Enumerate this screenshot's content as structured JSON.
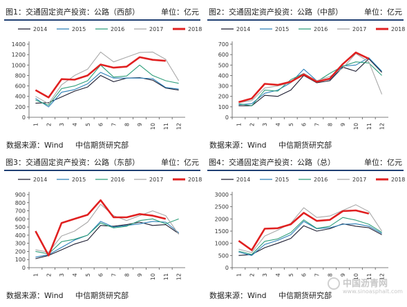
{
  "panels": [
    {
      "title": "图1：交通固定资产投资：公路（西部）",
      "unit": "单位：亿元",
      "source_label": "数据来源：Wind",
      "source_org": "中信期货研究部"
    },
    {
      "title": "图2：交通固定资产投资：公路（中部）",
      "unit": "单位：亿元",
      "source_label": "数据来源：Wind",
      "source_org": "中信期货研究部"
    },
    {
      "title": "图3：交通固定资产投资：公路（东部）",
      "unit": "单位：亿元",
      "source_label": "数据来源：Wind",
      "source_org": "中信期货研究部"
    },
    {
      "title": "图4：交通固定资产投资：公路（总）",
      "unit": "单位：亿元",
      "source_label": "数据来源：Wind",
      "source_org": "中信期货研究部"
    }
  ],
  "watermark": {
    "text": "中国沥青网",
    "url": "www.sinoasphalt.com"
  },
  "series_colors": {
    "2014": "#1a1a2e",
    "2015": "#2a7fb8",
    "2016": "#2e9e7a",
    "2017": "#a8a8a8",
    "2018": "#e02020"
  },
  "chart_data": [
    {
      "type": "line",
      "title": "图1：交通固定资产投资：公路（西部）",
      "xlabel": "",
      "ylabel": "",
      "x": [
        "1",
        "2",
        "3",
        "4",
        "5",
        "6",
        "7",
        "8",
        "9",
        "10",
        "11",
        "12"
      ],
      "ylim": [
        0,
        1400
      ],
      "yticks": [
        0,
        200,
        400,
        600,
        800,
        1000,
        1200,
        1400
      ],
      "grid": false,
      "legend": "top",
      "series": [
        {
          "name": "2014",
          "values": [
            270,
            280,
            390,
            500,
            580,
            800,
            680,
            750,
            760,
            710,
            560,
            520
          ]
        },
        {
          "name": "2015",
          "values": [
            360,
            200,
            480,
            530,
            640,
            860,
            750,
            750,
            750,
            740,
            570,
            540
          ]
        },
        {
          "name": "2016",
          "values": [
            330,
            230,
            550,
            600,
            700,
            1000,
            770,
            790,
            1000,
            800,
            700,
            650
          ]
        },
        {
          "name": "2017",
          "values": [
            400,
            260,
            620,
            800,
            920,
            1250,
            1060,
            1150,
            1240,
            1250,
            1110,
            700
          ]
        },
        {
          "name": "2018",
          "values": [
            520,
            380,
            730,
            720,
            800,
            1010,
            950,
            970,
            1150,
            1100,
            1080,
            null
          ]
        }
      ]
    },
    {
      "type": "line",
      "title": "图2：交通固定资产投资：公路（中部）",
      "xlabel": "",
      "ylabel": "",
      "x": [
        "1",
        "2",
        "3",
        "4",
        "5",
        "6",
        "7",
        "8",
        "9",
        "10",
        "11",
        "12"
      ],
      "ylim": [
        0,
        700
      ],
      "yticks": [
        0,
        100,
        200,
        300,
        400,
        500,
        600,
        700
      ],
      "grid": false,
      "legend": "top",
      "series": [
        {
          "name": "2014",
          "values": [
            110,
            110,
            210,
            200,
            260,
            400,
            330,
            350,
            480,
            440,
            560,
            430
          ]
        },
        {
          "name": "2015",
          "values": [
            120,
            130,
            230,
            260,
            330,
            460,
            350,
            360,
            490,
            500,
            570,
            440
          ]
        },
        {
          "name": "2016",
          "values": [
            130,
            110,
            260,
            250,
            360,
            420,
            340,
            420,
            490,
            530,
            520,
            400
          ]
        },
        {
          "name": "2017",
          "values": [
            140,
            160,
            280,
            300,
            330,
            420,
            350,
            390,
            470,
            610,
            530,
            220
          ]
        },
        {
          "name": "2018",
          "values": [
            145,
            180,
            320,
            310,
            340,
            410,
            340,
            370,
            510,
            620,
            560,
            null
          ]
        }
      ]
    },
    {
      "type": "line",
      "title": "图3：交通固定资产投资：公路（东部）",
      "xlabel": "",
      "ylabel": "",
      "x": [
        "1",
        "2",
        "3",
        "4",
        "5",
        "6",
        "7",
        "8",
        "9",
        "10",
        "11",
        "12"
      ],
      "ylim": [
        0,
        900
      ],
      "yticks": [
        0,
        100,
        200,
        300,
        400,
        500,
        600,
        700,
        800,
        900
      ],
      "grid": false,
      "legend": "top",
      "series": [
        {
          "name": "2014",
          "values": [
            110,
            150,
            220,
            290,
            340,
            520,
            510,
            530,
            560,
            520,
            530,
            420
          ]
        },
        {
          "name": "2015",
          "values": [
            130,
            160,
            250,
            340,
            400,
            570,
            500,
            520,
            540,
            570,
            560,
            430
          ]
        },
        {
          "name": "2016",
          "values": [
            200,
            170,
            320,
            350,
            400,
            550,
            490,
            510,
            580,
            600,
            540,
            600
          ]
        },
        {
          "name": "2017",
          "values": [
            220,
            190,
            390,
            450,
            560,
            780,
            640,
            580,
            640,
            700,
            640,
            410
          ]
        },
        {
          "name": "2018",
          "values": [
            450,
            150,
            550,
            600,
            650,
            830,
            620,
            620,
            660,
            640,
            600,
            null
          ]
        }
      ]
    },
    {
      "type": "line",
      "title": "图4：交通固定资产投资：公路（总）",
      "xlabel": "",
      "ylabel": "",
      "x": [
        "1",
        "2",
        "3",
        "4",
        "5",
        "6",
        "7",
        "8",
        "9",
        "10",
        "11",
        "12"
      ],
      "ylim": [
        0,
        3000
      ],
      "yticks": [
        0,
        500,
        1000,
        1500,
        2000,
        2500,
        3000
      ],
      "grid": false,
      "legend": "top",
      "series": [
        {
          "name": "2014",
          "values": [
            500,
            540,
            820,
            1000,
            1200,
            1720,
            1500,
            1600,
            1800,
            1700,
            1640,
            1350
          ]
        },
        {
          "name": "2015",
          "values": [
            640,
            500,
            950,
            1120,
            1350,
            1900,
            1600,
            1640,
            1780,
            1800,
            1700,
            1400
          ]
        },
        {
          "name": "2016",
          "values": [
            680,
            540,
            1080,
            1180,
            1440,
            1960,
            1610,
            1700,
            2060,
            1950,
            1780,
            1450
          ]
        },
        {
          "name": "2017",
          "values": [
            760,
            620,
            1300,
            1540,
            1820,
            2460,
            2060,
            2120,
            2350,
            2580,
            2300,
            1500
          ]
        },
        {
          "name": "2018",
          "values": [
            1100,
            720,
            1600,
            1620,
            1780,
            2250,
            1920,
            1960,
            2320,
            2350,
            2220,
            null
          ]
        }
      ]
    }
  ]
}
